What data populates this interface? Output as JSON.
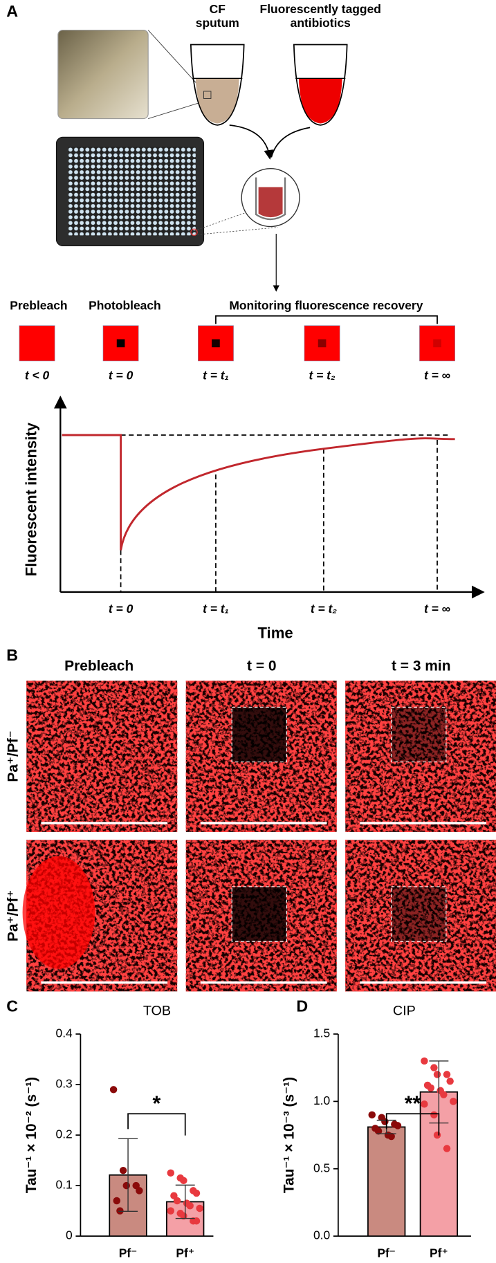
{
  "panel_a": {
    "label": "A",
    "cf_sputum": [
      "CF",
      "sputum"
    ],
    "antibiotics": [
      "Fluorescently tagged",
      "antibiotics"
    ],
    "stages": [
      "Prebleach",
      "Photobleach",
      "Monitoring fluorescence recovery"
    ],
    "time_points": [
      "t < 0",
      "t = 0",
      "t = t₁",
      "t = t₂",
      "t = ∞"
    ],
    "graph": {
      "y_label": "Fluorescent intensity",
      "x_label": "Time",
      "x_ticks": [
        "t = 0",
        "t = t₁",
        "t = t₂",
        "t = ∞"
      ]
    }
  },
  "panel_b": {
    "label": "B",
    "columns": [
      "Prebleach",
      "t = 0",
      "t = 3 min"
    ],
    "rows": [
      "Pa⁺/Pf⁻",
      "Pa⁺/Pf⁺"
    ]
  },
  "chart_data": [
    {
      "type": "bar",
      "panel": "C",
      "title": "TOB",
      "y_label": "Tau⁻¹ × 10⁻² (s⁻¹)",
      "categories": [
        "Pf⁻",
        "Pf⁺"
      ],
      "values": [
        0.121,
        0.068
      ],
      "errors": [
        0.072,
        0.033
      ],
      "points": [
        [
          0.29,
          0.13,
          0.1,
          0.1,
          0.09,
          0.07,
          0.05
        ],
        [
          0.125,
          0.115,
          0.11,
          0.09,
          0.085,
          0.08,
          0.07,
          0.065,
          0.06,
          0.055,
          0.05,
          0.045,
          0.04,
          0.03,
          0.03
        ]
      ],
      "bar_colors": [
        "#c98a80",
        "#f4a0a6"
      ],
      "point_colors": [
        "#8b0a0a",
        "#e8393f"
      ],
      "significance": "*",
      "ylim": [
        0,
        0.4
      ],
      "yticks": [
        0,
        0.1,
        0.2,
        0.3,
        0.4
      ]
    },
    {
      "type": "bar",
      "panel": "D",
      "title": "CIP",
      "y_label": "Tau⁻¹ × 10⁻³ (s⁻¹)",
      "categories": [
        "Pf⁻",
        "Pf⁺"
      ],
      "values": [
        0.81,
        1.07
      ],
      "errors": [
        0.05,
        0.23
      ],
      "points": [
        [
          0.9,
          0.88,
          0.85,
          0.83,
          0.82,
          0.8,
          0.78,
          0.75,
          0.74
        ],
        [
          1.3,
          1.25,
          1.2,
          1.2,
          1.15,
          1.12,
          1.1,
          1.08,
          1.05,
          1.0,
          0.98,
          0.9,
          0.75,
          0.65
        ]
      ],
      "bar_colors": [
        "#c98a80",
        "#f4a0a6"
      ],
      "point_colors": [
        "#8b0a0a",
        "#e8393f"
      ],
      "significance": "**",
      "ylim": [
        0,
        1.5
      ],
      "yticks": [
        {
          "value": 0,
          "label": "0.0"
        },
        0.5,
        {
          "value": 1,
          "label": "1.0"
        },
        1.5
      ]
    }
  ]
}
